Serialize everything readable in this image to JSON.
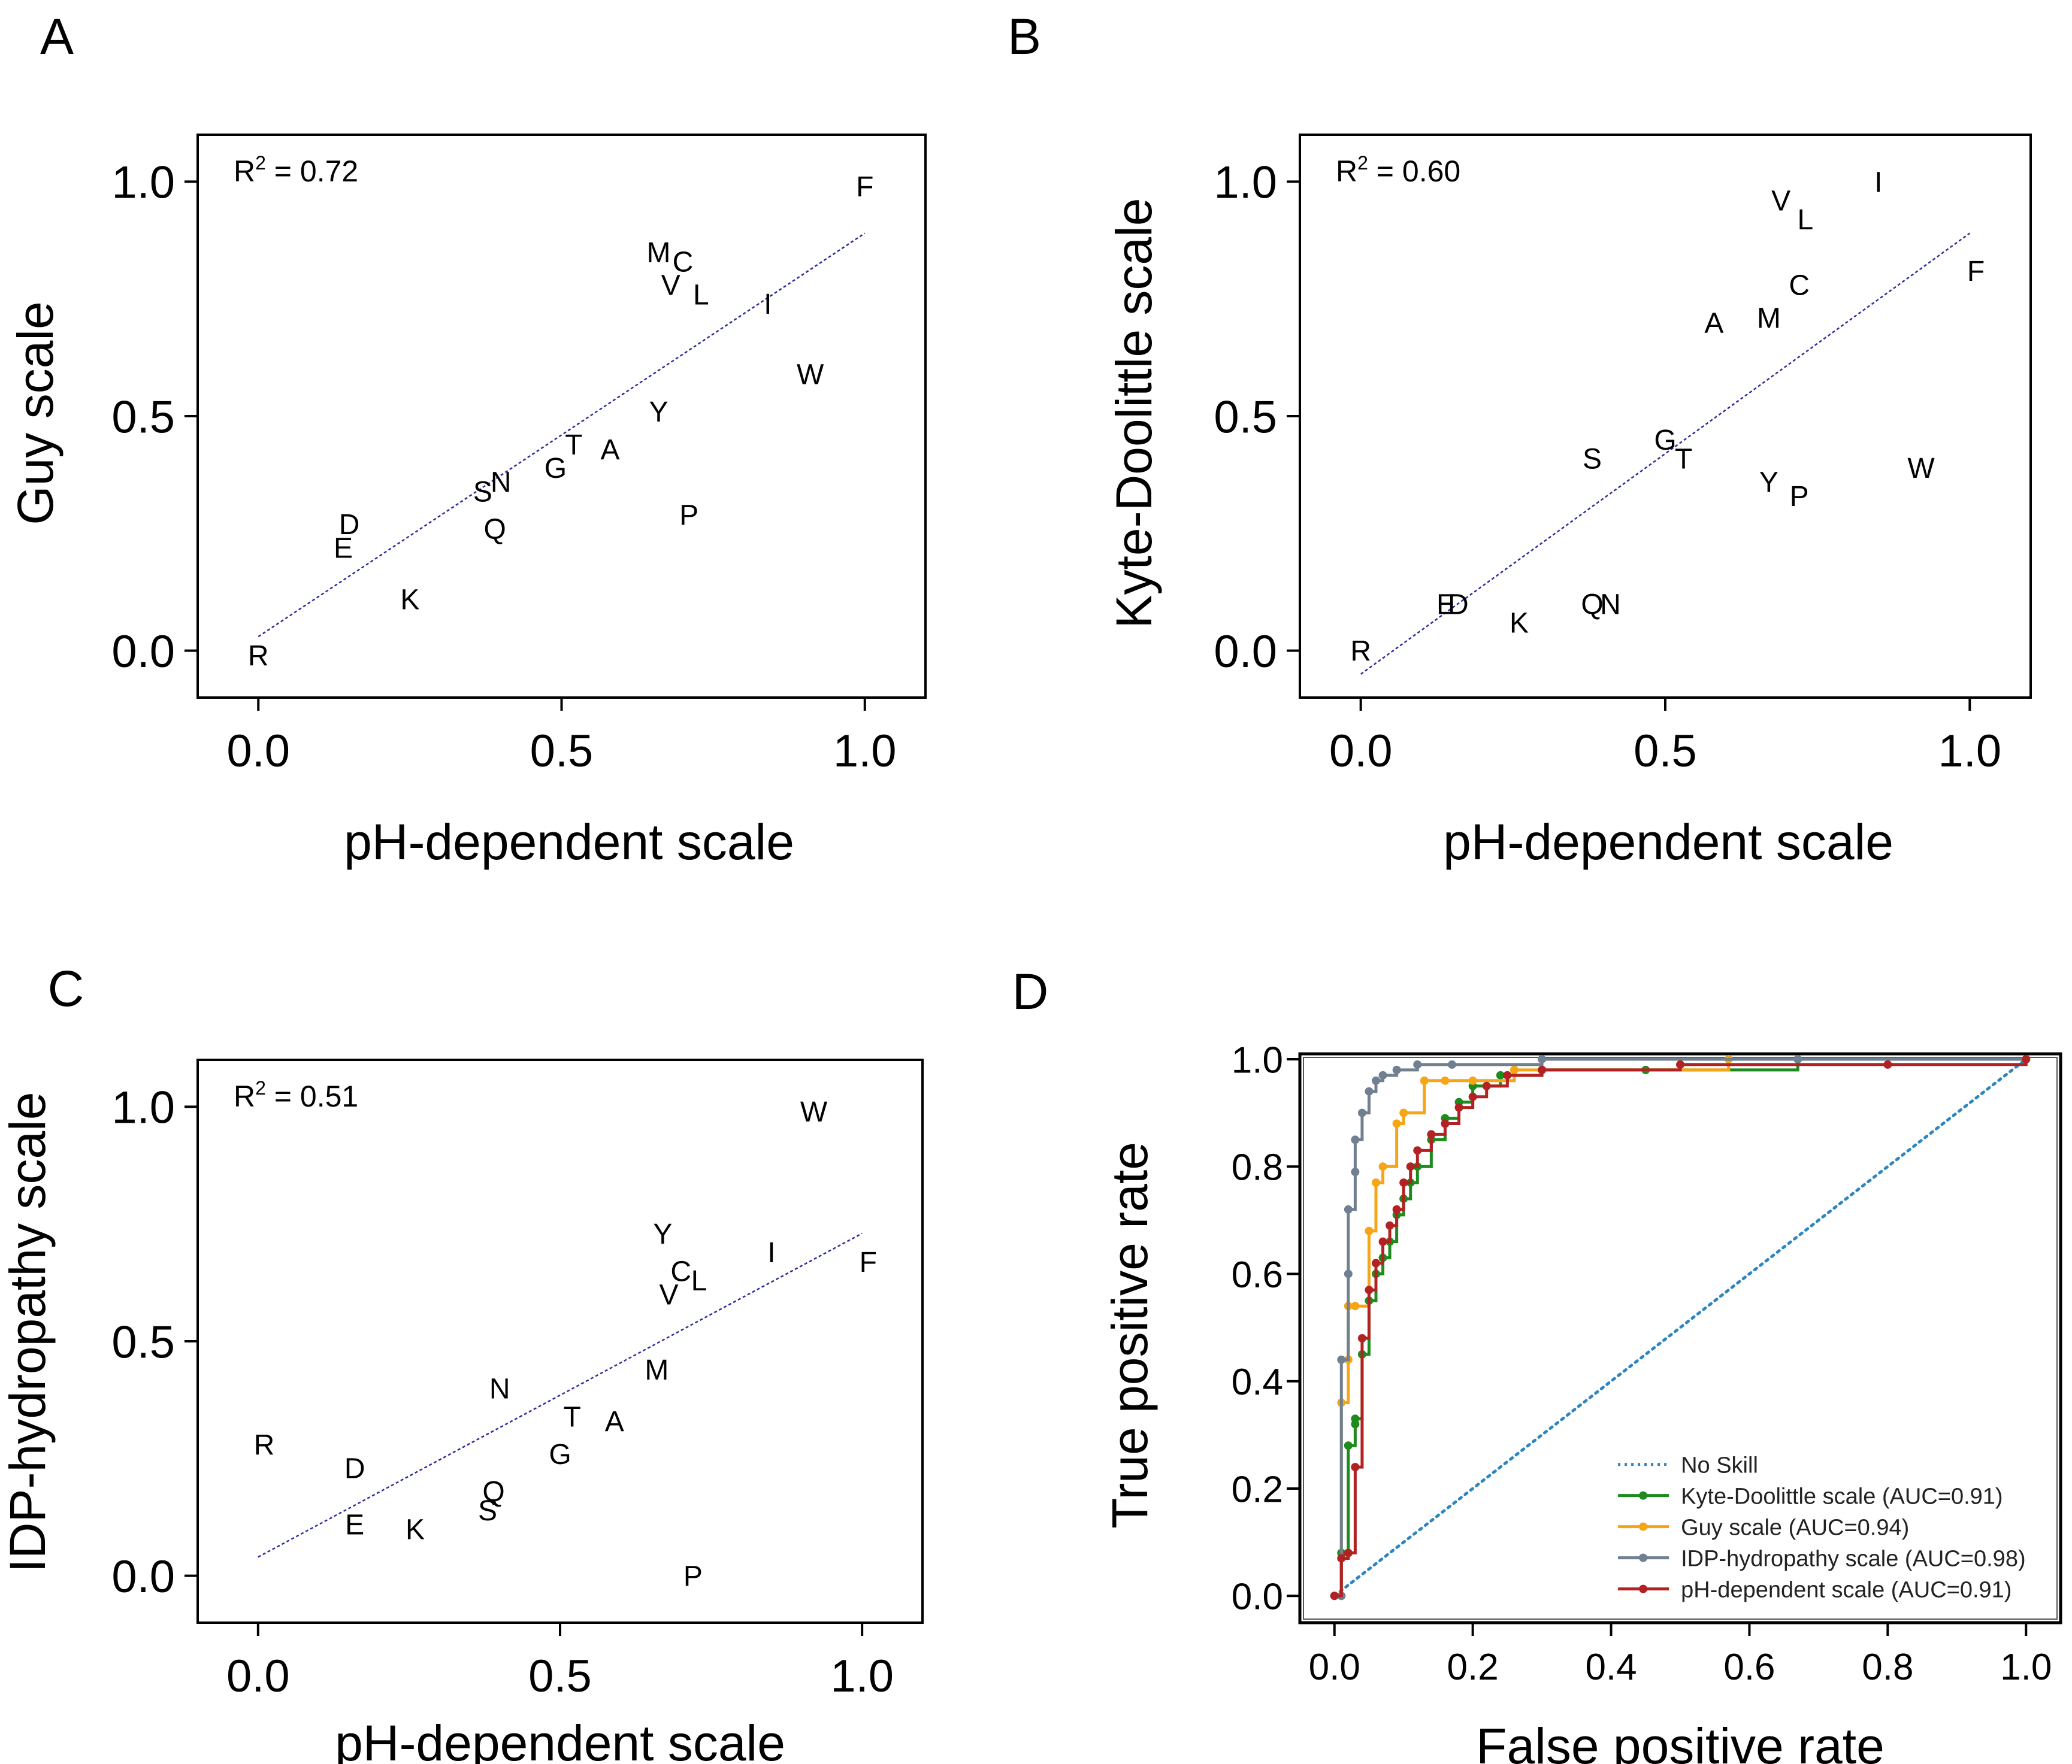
{
  "panel_labels": [
    "A",
    "B",
    "C",
    "D"
  ],
  "chart_data": [
    {
      "panel": "A",
      "type": "scatter",
      "xlabel": "pH-dependent scale",
      "ylabel": "Guy scale",
      "xlim": [
        -0.1,
        1.1
      ],
      "ylim": [
        -0.1,
        1.1
      ],
      "xticks": [
        "0.0",
        "0.5",
        "1.0"
      ],
      "yticks": [
        "0.0",
        "0.5",
        "1.0"
      ],
      "r2_label": "R",
      "r2_sup": "2",
      "r2_value": " = 0.72",
      "fit": {
        "x": [
          0.0,
          1.0
        ],
        "y": [
          0.03,
          0.89
        ]
      },
      "points": [
        {
          "label": "F",
          "x": 1.0,
          "y": 0.99
        },
        {
          "label": "M",
          "x": 0.66,
          "y": 0.85
        },
        {
          "label": "C",
          "x": 0.7,
          "y": 0.83
        },
        {
          "label": "V",
          "x": 0.68,
          "y": 0.78
        },
        {
          "label": "L",
          "x": 0.73,
          "y": 0.76
        },
        {
          "label": "I",
          "x": 0.84,
          "y": 0.74
        },
        {
          "label": "W",
          "x": 0.91,
          "y": 0.59
        },
        {
          "label": "Y",
          "x": 0.66,
          "y": 0.51
        },
        {
          "label": "T",
          "x": 0.52,
          "y": 0.44
        },
        {
          "label": "A",
          "x": 0.58,
          "y": 0.43
        },
        {
          "label": "G",
          "x": 0.49,
          "y": 0.39
        },
        {
          "label": "S",
          "x": 0.37,
          "y": 0.34
        },
        {
          "label": "N",
          "x": 0.4,
          "y": 0.36
        },
        {
          "label": "Q",
          "x": 0.39,
          "y": 0.26
        },
        {
          "label": "P",
          "x": 0.71,
          "y": 0.29
        },
        {
          "label": "D",
          "x": 0.15,
          "y": 0.27
        },
        {
          "label": "E",
          "x": 0.14,
          "y": 0.22
        },
        {
          "label": "K",
          "x": 0.25,
          "y": 0.11
        },
        {
          "label": "R",
          "x": 0.0,
          "y": -0.01
        }
      ]
    },
    {
      "panel": "B",
      "type": "scatter",
      "xlabel": "pH-dependent scale",
      "ylabel": "Kyte-Doolittle scale",
      "xlim": [
        -0.1,
        1.1
      ],
      "ylim": [
        -0.1,
        1.1
      ],
      "xticks": [
        "0.0",
        "0.5",
        "1.0"
      ],
      "yticks": [
        "0.0",
        "0.5",
        "1.0"
      ],
      "r2_label": "R",
      "r2_sup": "2",
      "r2_value": " = 0.60",
      "fit": {
        "x": [
          0.0,
          1.0
        ],
        "y": [
          -0.05,
          0.89
        ]
      },
      "points": [
        {
          "label": "I",
          "x": 0.85,
          "y": 1.0
        },
        {
          "label": "V",
          "x": 0.69,
          "y": 0.96
        },
        {
          "label": "L",
          "x": 0.73,
          "y": 0.92
        },
        {
          "label": "F",
          "x": 1.01,
          "y": 0.81
        },
        {
          "label": "C",
          "x": 0.72,
          "y": 0.78
        },
        {
          "label": "A",
          "x": 0.58,
          "y": 0.7
        },
        {
          "label": "M",
          "x": 0.67,
          "y": 0.71
        },
        {
          "label": "G",
          "x": 0.5,
          "y": 0.45
        },
        {
          "label": "T",
          "x": 0.53,
          "y": 0.41
        },
        {
          "label": "S",
          "x": 0.38,
          "y": 0.41
        },
        {
          "label": "W",
          "x": 0.92,
          "y": 0.39
        },
        {
          "label": "Y",
          "x": 0.67,
          "y": 0.36
        },
        {
          "label": "P",
          "x": 0.72,
          "y": 0.33
        },
        {
          "label": "E",
          "x": 0.14,
          "y": 0.1
        },
        {
          "label": "D",
          "x": 0.16,
          "y": 0.1
        },
        {
          "label": "Q",
          "x": 0.38,
          "y": 0.1
        },
        {
          "label": "N",
          "x": 0.41,
          "y": 0.1
        },
        {
          "label": "K",
          "x": 0.26,
          "y": 0.06
        },
        {
          "label": "R",
          "x": 0.0,
          "y": 0.0
        }
      ]
    },
    {
      "panel": "C",
      "type": "scatter",
      "xlabel": "pH-dependent scale",
      "ylabel": "IDP-hydropathy scale",
      "xlim": [
        -0.1,
        1.1
      ],
      "ylim": [
        -0.1,
        1.1
      ],
      "xticks": [
        "0.0",
        "0.5",
        "1.0"
      ],
      "yticks": [
        "0.0",
        "0.5",
        "1.0"
      ],
      "r2_label": "R",
      "r2_sup": "2",
      "r2_value": " = 0.51",
      "fit": {
        "x": [
          0.0,
          1.0
        ],
        "y": [
          0.04,
          0.73
        ]
      },
      "points": [
        {
          "label": "W",
          "x": 0.92,
          "y": 0.99
        },
        {
          "label": "Y",
          "x": 0.67,
          "y": 0.73
        },
        {
          "label": "I",
          "x": 0.85,
          "y": 0.69
        },
        {
          "label": "F",
          "x": 1.01,
          "y": 0.67
        },
        {
          "label": "C",
          "x": 0.7,
          "y": 0.65
        },
        {
          "label": "L",
          "x": 0.73,
          "y": 0.63
        },
        {
          "label": "V",
          "x": 0.68,
          "y": 0.6
        },
        {
          "label": "M",
          "x": 0.66,
          "y": 0.44
        },
        {
          "label": "N",
          "x": 0.4,
          "y": 0.4
        },
        {
          "label": "T",
          "x": 0.52,
          "y": 0.34
        },
        {
          "label": "A",
          "x": 0.59,
          "y": 0.33
        },
        {
          "label": "G",
          "x": 0.5,
          "y": 0.26
        },
        {
          "label": "R",
          "x": 0.01,
          "y": 0.28
        },
        {
          "label": "D",
          "x": 0.16,
          "y": 0.23
        },
        {
          "label": "Q",
          "x": 0.39,
          "y": 0.18
        },
        {
          "label": "S",
          "x": 0.38,
          "y": 0.14
        },
        {
          "label": "E",
          "x": 0.16,
          "y": 0.11
        },
        {
          "label": "K",
          "x": 0.26,
          "y": 0.1
        },
        {
          "label": "P",
          "x": 0.72,
          "y": 0.0
        }
      ]
    },
    {
      "panel": "D",
      "type": "line",
      "xlabel": "False positive rate",
      "ylabel": "True positive rate",
      "xlim": [
        -0.05,
        1.05
      ],
      "ylim": [
        -0.05,
        1.01
      ],
      "xticks": [
        "0.0",
        "0.2",
        "0.4",
        "0.6",
        "0.8",
        "1.0"
      ],
      "yticks": [
        "0.0",
        "0.2",
        "0.4",
        "0.6",
        "0.8",
        "1.0"
      ],
      "series": [
        {
          "name": "No Skill",
          "color": "#2e86c1",
          "style": "dotted",
          "x": [
            0,
            1
          ],
          "y": [
            0,
            1
          ]
        },
        {
          "name": "Kyte-Doolittle scale (AUC=0.91)",
          "color": "#1e8b1e",
          "style": "step",
          "x": [
            0,
            0.01,
            0.01,
            0.02,
            0.02,
            0.03,
            0.03,
            0.04,
            0.05,
            0.06,
            0.07,
            0.08,
            0.09,
            0.1,
            0.11,
            0.12,
            0.14,
            0.16,
            0.18,
            0.2,
            0.24,
            0.3,
            0.45,
            0.67,
            1.0
          ],
          "y": [
            0,
            0,
            0.08,
            0.08,
            0.28,
            0.32,
            0.33,
            0.45,
            0.55,
            0.6,
            0.63,
            0.66,
            0.71,
            0.74,
            0.77,
            0.8,
            0.85,
            0.89,
            0.92,
            0.95,
            0.97,
            0.98,
            0.98,
            1.0,
            1.0
          ]
        },
        {
          "name": "Guy scale (AUC=0.94)",
          "color": "#f5a516",
          "style": "step",
          "x": [
            0,
            0.01,
            0.01,
            0.02,
            0.02,
            0.03,
            0.05,
            0.06,
            0.07,
            0.09,
            0.1,
            0.13,
            0.16,
            0.2,
            0.26,
            0.57,
            1.0
          ],
          "y": [
            0,
            0,
            0.36,
            0.44,
            0.54,
            0.54,
            0.68,
            0.77,
            0.8,
            0.88,
            0.9,
            0.96,
            0.96,
            0.96,
            0.98,
            1.0,
            1.0
          ]
        },
        {
          "name": "IDP-hydropathy scale (AUC=0.98)",
          "color": "#708090",
          "style": "step",
          "x": [
            0,
            0.01,
            0.01,
            0.02,
            0.02,
            0.03,
            0.03,
            0.04,
            0.05,
            0.06,
            0.07,
            0.09,
            0.12,
            0.17,
            0.3,
            0.67,
            1.0
          ],
          "y": [
            0,
            0,
            0.44,
            0.6,
            0.72,
            0.79,
            0.85,
            0.9,
            0.94,
            0.96,
            0.97,
            0.98,
            0.99,
            0.99,
            1.0,
            1.0,
            1.0
          ]
        },
        {
          "name": "pH-dependent scale (AUC=0.91)",
          "color": "#b22222",
          "style": "step",
          "x": [
            0,
            0.01,
            0.02,
            0.03,
            0.04,
            0.05,
            0.06,
            0.07,
            0.08,
            0.09,
            0.1,
            0.11,
            0.12,
            0.14,
            0.16,
            0.18,
            0.2,
            0.22,
            0.25,
            0.3,
            0.5,
            0.8,
            1.0
          ],
          "y": [
            0,
            0.07,
            0.08,
            0.24,
            0.48,
            0.57,
            0.62,
            0.66,
            0.69,
            0.72,
            0.77,
            0.8,
            0.83,
            0.86,
            0.88,
            0.91,
            0.93,
            0.95,
            0.97,
            0.98,
            0.99,
            0.99,
            1.0
          ]
        }
      ]
    }
  ]
}
